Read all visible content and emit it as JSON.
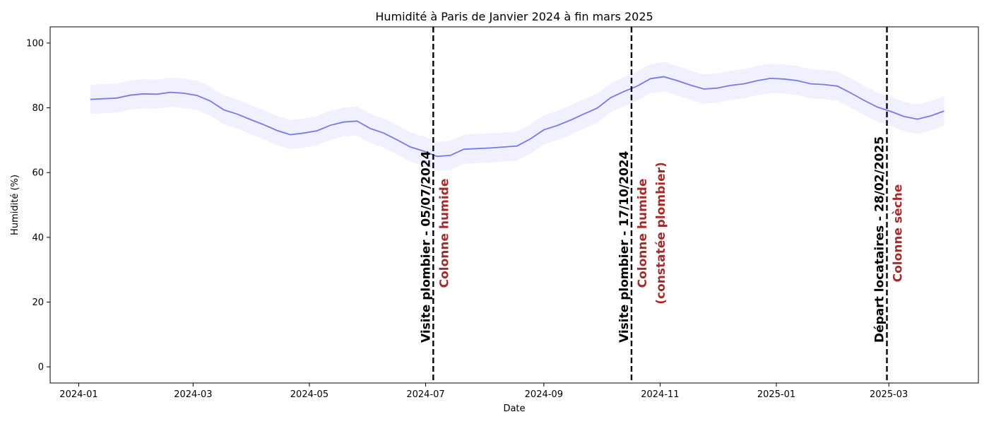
{
  "chart_data": {
    "type": "line",
    "title": "Humidité à Paris de Janvier 2024 à fin mars 2025",
    "xlabel": "Date",
    "ylabel": "Humidité (%)",
    "xlim": [
      "2023-12-17",
      "2025-04-17"
    ],
    "ylim": [
      -5,
      105
    ],
    "x_ticks": [
      "2024-01",
      "2024-03",
      "2024-05",
      "2024-07",
      "2024-09",
      "2024-11",
      "2025-01",
      "2025-03"
    ],
    "y_ticks": [
      0,
      20,
      40,
      60,
      80,
      100
    ],
    "grid": false,
    "colors": {
      "line": "#7777ee",
      "band": "#eeeeff",
      "vline": "#000000",
      "annotation_red": "#a52a2a"
    },
    "series": [
      {
        "band_width": 4.5,
        "points": [
          [
            "2024-01-07",
            82.6
          ],
          [
            "2024-01-21",
            83.0
          ],
          [
            "2024-01-28",
            83.9
          ],
          [
            "2024-02-04",
            84.3
          ],
          [
            "2024-02-11",
            84.2
          ],
          [
            "2024-02-18",
            84.8
          ],
          [
            "2024-02-25",
            84.5
          ],
          [
            "2024-03-03",
            83.8
          ],
          [
            "2024-03-10",
            82.1
          ],
          [
            "2024-03-17",
            79.4
          ],
          [
            "2024-03-24",
            78.1
          ],
          [
            "2024-03-31",
            76.4
          ],
          [
            "2024-04-07",
            74.8
          ],
          [
            "2024-04-14",
            73.0
          ],
          [
            "2024-04-21",
            71.7
          ],
          [
            "2024-04-28",
            72.2
          ],
          [
            "2024-05-05",
            72.9
          ],
          [
            "2024-05-12",
            74.6
          ],
          [
            "2024-05-19",
            75.6
          ],
          [
            "2024-05-26",
            75.9
          ],
          [
            "2024-06-02",
            73.6
          ],
          [
            "2024-06-09",
            72.2
          ],
          [
            "2024-06-16",
            70.1
          ],
          [
            "2024-06-23",
            67.9
          ],
          [
            "2024-06-30",
            66.6
          ],
          [
            "2024-07-07",
            65.0
          ],
          [
            "2024-07-14",
            65.3
          ],
          [
            "2024-07-21",
            67.2
          ],
          [
            "2024-08-04",
            67.6
          ],
          [
            "2024-08-11",
            67.9
          ],
          [
            "2024-08-18",
            68.2
          ],
          [
            "2024-08-25",
            70.4
          ],
          [
            "2024-09-01",
            73.2
          ],
          [
            "2024-09-08",
            74.5
          ],
          [
            "2024-09-15",
            76.2
          ],
          [
            "2024-09-22",
            78.1
          ],
          [
            "2024-09-29",
            79.9
          ],
          [
            "2024-10-06",
            83.1
          ],
          [
            "2024-10-13",
            85.0
          ],
          [
            "2024-10-20",
            86.7
          ],
          [
            "2024-10-27",
            89.0
          ],
          [
            "2024-11-03",
            89.6
          ],
          [
            "2024-11-10",
            88.4
          ],
          [
            "2024-11-17",
            87.0
          ],
          [
            "2024-11-24",
            85.8
          ],
          [
            "2024-12-01",
            86.1
          ],
          [
            "2024-12-08",
            86.9
          ],
          [
            "2024-12-15",
            87.4
          ],
          [
            "2024-12-22",
            88.4
          ],
          [
            "2024-12-29",
            89.1
          ],
          [
            "2025-01-05",
            88.9
          ],
          [
            "2025-01-12",
            88.4
          ],
          [
            "2025-01-19",
            87.4
          ],
          [
            "2025-01-26",
            87.2
          ],
          [
            "2025-02-02",
            86.7
          ],
          [
            "2025-02-09",
            84.6
          ],
          [
            "2025-02-16",
            82.3
          ],
          [
            "2025-02-23",
            80.2
          ],
          [
            "2025-03-02",
            78.9
          ],
          [
            "2025-03-09",
            77.3
          ],
          [
            "2025-03-16",
            76.5
          ],
          [
            "2025-03-23",
            77.5
          ],
          [
            "2025-03-30",
            79.0
          ]
        ]
      }
    ],
    "annotations": [
      {
        "date": "2024-07-05",
        "label": "Visite plombier   - 05/07/2024",
        "note_lines": [
          "Colonne humide"
        ]
      },
      {
        "date": "2024-10-17",
        "label": "Visite plombier   - 17/10/2024",
        "note_lines": [
          "Colonne humide",
          "(constatée plombier)"
        ]
      },
      {
        "date": "2025-02-28",
        "label": "Départ locataires - 28/02/2025",
        "note_lines": [
          "Colonne sèche"
        ]
      }
    ]
  }
}
